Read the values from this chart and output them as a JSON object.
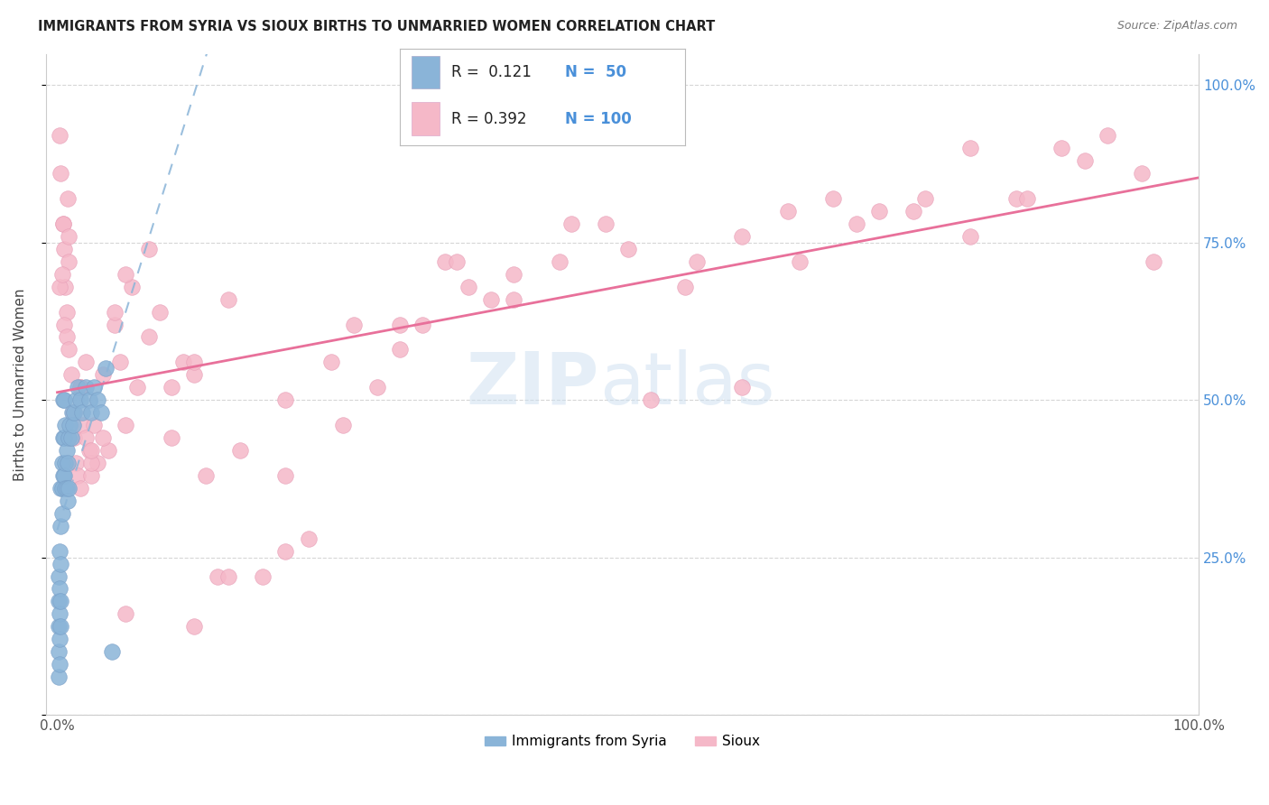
{
  "title": "IMMIGRANTS FROM SYRIA VS SIOUX BIRTHS TO UNMARRIED WOMEN CORRELATION CHART",
  "source": "Source: ZipAtlas.com",
  "ylabel": "Births to Unmarried Women",
  "legend_label1": "Immigrants from Syria",
  "legend_label2": "Sioux",
  "color_blue": "#8ab4d8",
  "color_pink": "#f5b8c8",
  "color_trendline_blue": "#8ab4d8",
  "color_trendline_pink": "#e8709a",
  "watermark_zip": "ZIP",
  "watermark_atlas": "atlas",
  "blue_scatter_x": [
    0.001,
    0.001,
    0.001,
    0.001,
    0.001,
    0.002,
    0.002,
    0.002,
    0.002,
    0.002,
    0.003,
    0.003,
    0.003,
    0.003,
    0.003,
    0.004,
    0.004,
    0.004,
    0.005,
    0.005,
    0.005,
    0.006,
    0.006,
    0.006,
    0.007,
    0.007,
    0.007,
    0.008,
    0.008,
    0.009,
    0.009,
    0.01,
    0.01,
    0.011,
    0.012,
    0.013,
    0.014,
    0.015,
    0.016,
    0.018,
    0.02,
    0.022,
    0.025,
    0.028,
    0.03,
    0.032,
    0.035,
    0.038,
    0.042,
    0.048
  ],
  "blue_scatter_y": [
    0.06,
    0.1,
    0.14,
    0.18,
    0.22,
    0.08,
    0.12,
    0.16,
    0.2,
    0.26,
    0.14,
    0.18,
    0.24,
    0.3,
    0.36,
    0.32,
    0.36,
    0.4,
    0.38,
    0.44,
    0.5,
    0.38,
    0.44,
    0.5,
    0.36,
    0.4,
    0.46,
    0.36,
    0.42,
    0.34,
    0.4,
    0.36,
    0.44,
    0.46,
    0.44,
    0.48,
    0.46,
    0.48,
    0.5,
    0.52,
    0.5,
    0.48,
    0.52,
    0.5,
    0.48,
    0.52,
    0.5,
    0.48,
    0.55,
    0.1
  ],
  "pink_scatter_x": [
    0.002,
    0.003,
    0.005,
    0.006,
    0.007,
    0.008,
    0.009,
    0.01,
    0.012,
    0.014,
    0.015,
    0.016,
    0.018,
    0.02,
    0.022,
    0.025,
    0.028,
    0.03,
    0.032,
    0.035,
    0.04,
    0.045,
    0.05,
    0.055,
    0.06,
    0.065,
    0.07,
    0.08,
    0.09,
    0.1,
    0.11,
    0.12,
    0.13,
    0.14,
    0.15,
    0.16,
    0.18,
    0.2,
    0.22,
    0.24,
    0.26,
    0.28,
    0.3,
    0.32,
    0.34,
    0.36,
    0.38,
    0.4,
    0.44,
    0.48,
    0.52,
    0.56,
    0.6,
    0.64,
    0.68,
    0.72,
    0.76,
    0.8,
    0.84,
    0.88,
    0.92,
    0.96,
    0.002,
    0.004,
    0.006,
    0.008,
    0.01,
    0.015,
    0.02,
    0.025,
    0.03,
    0.04,
    0.05,
    0.06,
    0.08,
    0.1,
    0.12,
    0.15,
    0.2,
    0.25,
    0.3,
    0.35,
    0.4,
    0.45,
    0.5,
    0.55,
    0.6,
    0.65,
    0.7,
    0.75,
    0.8,
    0.85,
    0.9,
    0.95,
    0.005,
    0.01,
    0.02,
    0.03,
    0.06,
    0.12,
    0.2
  ],
  "pink_scatter_y": [
    0.92,
    0.86,
    0.78,
    0.74,
    0.68,
    0.64,
    0.82,
    0.72,
    0.54,
    0.48,
    0.44,
    0.4,
    0.38,
    0.52,
    0.46,
    0.56,
    0.42,
    0.38,
    0.46,
    0.4,
    0.54,
    0.42,
    0.62,
    0.56,
    0.46,
    0.68,
    0.52,
    0.6,
    0.64,
    0.44,
    0.56,
    0.54,
    0.38,
    0.22,
    0.22,
    0.42,
    0.22,
    0.26,
    0.28,
    0.56,
    0.62,
    0.52,
    0.62,
    0.62,
    0.72,
    0.68,
    0.66,
    0.66,
    0.72,
    0.78,
    0.5,
    0.72,
    0.52,
    0.8,
    0.82,
    0.8,
    0.82,
    0.9,
    0.82,
    0.9,
    0.92,
    0.72,
    0.68,
    0.7,
    0.62,
    0.6,
    0.58,
    0.48,
    0.52,
    0.44,
    0.4,
    0.44,
    0.64,
    0.7,
    0.74,
    0.52,
    0.56,
    0.66,
    0.5,
    0.46,
    0.58,
    0.72,
    0.7,
    0.78,
    0.74,
    0.68,
    0.76,
    0.72,
    0.78,
    0.8,
    0.76,
    0.82,
    0.88,
    0.86,
    0.78,
    0.76,
    0.36,
    0.42,
    0.16,
    0.14,
    0.38
  ]
}
